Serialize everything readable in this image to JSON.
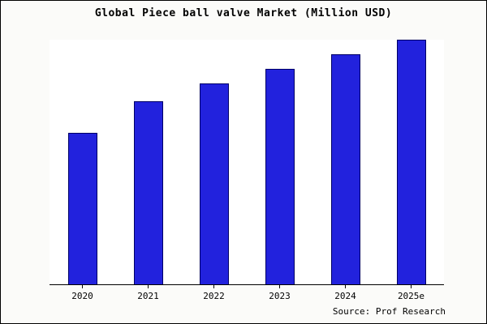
{
  "chart_data": {
    "type": "bar",
    "title": "Global Piece ball valve Market (Million USD)",
    "categories": [
      "2020",
      "2021",
      "2022",
      "2023",
      "2024",
      "2025e"
    ],
    "values": [
      62,
      75,
      82,
      88,
      94,
      100
    ],
    "xlabel": "",
    "ylabel": "",
    "ylim": [
      0,
      100
    ],
    "grid": false,
    "legend": "none",
    "bar_color": "#2222dd",
    "bar_edge_color": "#000066",
    "source": "Source: Prof Research"
  }
}
